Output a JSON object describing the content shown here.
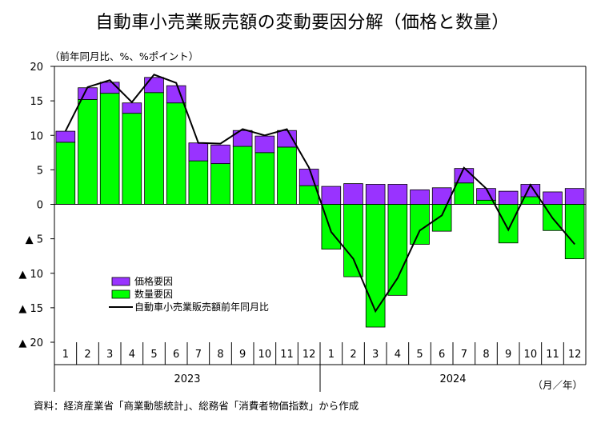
{
  "chart_data": {
    "type": "bar",
    "title": "自動車小売業販売額の変動要因分解（価格と数量）",
    "ylabel": "（前年同月比、%、%ポイント）",
    "xlabel": "（月／年）",
    "ylim": [
      -20,
      20
    ],
    "yticks": [
      20,
      15,
      10,
      5,
      0,
      -5,
      -10,
      -15,
      -20
    ],
    "ytick_labels": [
      "20",
      "15",
      "10",
      "5",
      "0",
      "▲ 5",
      "▲ 10",
      "▲ 15",
      "▲ 20"
    ],
    "stacked": true,
    "categories": [
      "1",
      "2",
      "3",
      "4",
      "5",
      "6",
      "7",
      "8",
      "9",
      "10",
      "11",
      "12",
      "1",
      "2",
      "3",
      "4",
      "5",
      "6",
      "7",
      "8",
      "9",
      "10",
      "11",
      "12"
    ],
    "years": [
      {
        "label": "2023",
        "span": 12
      },
      {
        "label": "2024",
        "span": 12
      }
    ],
    "series": [
      {
        "name": "価格要因",
        "kind": "bar",
        "color": "#9933FF",
        "values": [
          1.6,
          1.7,
          1.6,
          1.5,
          2.2,
          2.5,
          2.6,
          2.7,
          2.3,
          2.4,
          2.4,
          2.4,
          2.6,
          3.0,
          2.9,
          2.9,
          2.1,
          2.4,
          2.1,
          1.7,
          1.9,
          1.8,
          1.8,
          2.3
        ]
      },
      {
        "name": "数量要因",
        "kind": "bar",
        "color": "#00FF00",
        "values": [
          9.0,
          15.2,
          16.1,
          13.2,
          16.2,
          14.7,
          6.3,
          5.9,
          8.4,
          7.5,
          8.3,
          2.7,
          -6.5,
          -10.5,
          -17.8,
          -13.2,
          -5.8,
          -3.9,
          3.1,
          0.6,
          -5.6,
          1.1,
          -3.8,
          -7.9
        ]
      },
      {
        "name": "自動車小売業販売額前年同月比",
        "kind": "line",
        "color": "#000000",
        "values": [
          10.6,
          17.0,
          18.0,
          14.8,
          18.8,
          17.6,
          8.9,
          8.8,
          10.9,
          10.0,
          10.9,
          5.3,
          -4.0,
          -7.9,
          -15.5,
          -10.7,
          -3.8,
          -1.6,
          5.3,
          2.3,
          -3.7,
          2.8,
          -2.0,
          -5.8
        ]
      }
    ],
    "legend": {
      "position": "lower-left"
    }
  },
  "source": "資料：経済産業省「商業動態統計」、総務省「消費者物価指数」から作成"
}
